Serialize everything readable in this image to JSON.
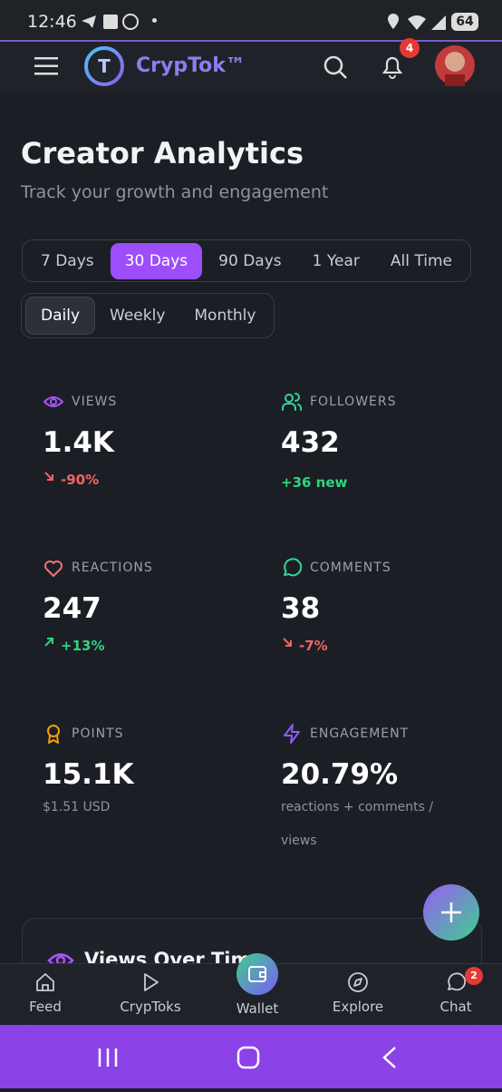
{
  "status_bar": {
    "time": "12:46",
    "battery": 64
  },
  "header": {
    "brand": "CrypTok™",
    "notification_count": 4
  },
  "page": {
    "title": "Creator Analytics",
    "subtitle": "Track your growth and engagement"
  },
  "range_tabs": [
    {
      "label": "7 Days",
      "selected": false
    },
    {
      "label": "30 Days",
      "selected": true
    },
    {
      "label": "90 Days",
      "selected": false
    },
    {
      "label": "1 Year",
      "selected": false
    },
    {
      "label": "All Time",
      "selected": false
    }
  ],
  "granularity_tabs": [
    {
      "label": "Daily",
      "selected": true
    },
    {
      "label": "Weekly",
      "selected": false
    },
    {
      "label": "Monthly",
      "selected": false
    }
  ],
  "stats": [
    {
      "label": "VIEWS",
      "value": "1.4K",
      "change": "-90%"
    },
    {
      "label": "FOLLOWERS",
      "value": "432",
      "note": "+36 new"
    },
    {
      "label": "REACTIONS",
      "value": "247",
      "change": "+13%"
    },
    {
      "label": "COMMENTS",
      "value": "38",
      "change": "-7%"
    },
    {
      "label": "POINTS",
      "value": "15.1K",
      "note": "$1.51 USD"
    },
    {
      "label": "ENGAGEMENT",
      "value": "20.79%",
      "note": "reactions + comments / views"
    }
  ],
  "chart_card": {
    "title": "Views Over Time"
  },
  "bottom_nav": [
    {
      "label": "Feed"
    },
    {
      "label": "CrypToks"
    },
    {
      "label": "Wallet"
    },
    {
      "label": "Explore"
    },
    {
      "label": "Chat",
      "badge": 2
    }
  ]
}
